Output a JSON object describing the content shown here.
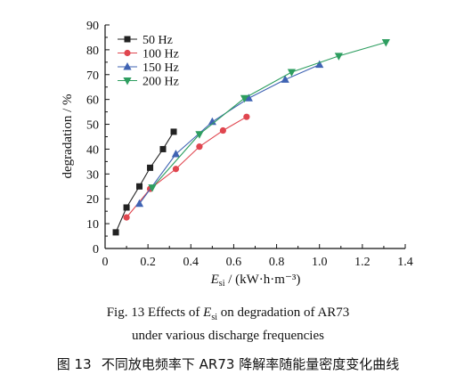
{
  "chart_data": {
    "type": "line",
    "xlabel_symbol": "E",
    "xlabel_sub": "si",
    "xlabel_unit": " / (kW·h·m⁻³)",
    "ylabel": "degradation / %",
    "xlim": [
      0,
      1.4
    ],
    "ylim": [
      0,
      90
    ],
    "x_ticks": [
      0,
      0.2,
      0.4,
      0.6,
      0.8,
      1.0,
      1.2,
      1.4
    ],
    "x_tick_labels": [
      "0",
      "0.2",
      "0.4",
      "0.6",
      "0.8",
      "1.0",
      "1.2",
      "1.4"
    ],
    "y_ticks": [
      0,
      10,
      20,
      30,
      40,
      50,
      60,
      70,
      80,
      90
    ],
    "y_tick_labels": [
      "0",
      "10",
      "20",
      "30",
      "40",
      "50",
      "60",
      "70",
      "80",
      "90"
    ],
    "grid": false,
    "legend_position": "top-left",
    "series": [
      {
        "name": "50 Hz",
        "color": "#222222",
        "marker": "square",
        "x": [
          0.05,
          0.1,
          0.16,
          0.21,
          0.27,
          0.32
        ],
        "y": [
          6.5,
          16.5,
          25,
          32.5,
          40,
          47
        ]
      },
      {
        "name": "100 Hz",
        "color": "#e0464f",
        "marker": "circle",
        "x": [
          0.1,
          0.21,
          0.33,
          0.44,
          0.55,
          0.66
        ],
        "y": [
          12.5,
          24,
          32,
          41,
          47.5,
          53
        ]
      },
      {
        "name": "150 Hz",
        "color": "#3f63b3",
        "marker": "triangle-up",
        "x": [
          0.16,
          0.33,
          0.5,
          0.67,
          0.84,
          1.0
        ],
        "y": [
          18,
          38,
          51,
          60.5,
          68,
          74
        ]
      },
      {
        "name": "200 Hz",
        "color": "#2e9e60",
        "marker": "triangle-down",
        "x": [
          0.22,
          0.44,
          0.65,
          0.87,
          1.09,
          1.31
        ],
        "y": [
          24.5,
          46,
          60.5,
          71,
          77.5,
          83
        ]
      }
    ]
  },
  "caption": {
    "en_line1_prefix": "Fig. 13    Effects of ",
    "en_line1_symbol": "E",
    "en_line1_sub": "si",
    "en_line1_suffix": " on degradation of AR73",
    "en_line2": "under various discharge frequencies",
    "zh_label": "图 13",
    "zh_text": "不同放电频率下 AR73 降解率随能量密度变化曲线"
  }
}
